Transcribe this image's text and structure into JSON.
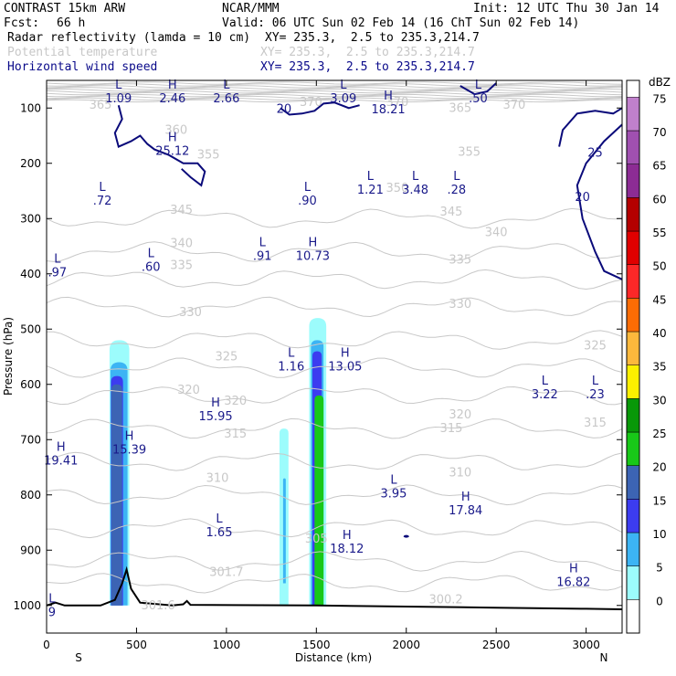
{
  "header": {
    "title": "CONTRAST 15km ARW",
    "model": "NCAR/MMM",
    "init": "Init: 12 UTC Thu 30 Jan 14",
    "fcst_label": "Fcst:",
    "fcst_value": "66 h",
    "valid": "Valid: 06 UTC Sun 02 Feb 14 (16 ChT Sun 02 Feb 14)",
    "fields": [
      {
        "name": "Radar reflectivity (lamda = 10 cm)",
        "xy": "XY= 235.3,  2.5 to 235.3,214.7"
      },
      {
        "name": "Potential temperature",
        "xy": "XY= 235.3,  2.5 to 235.3,214.7"
      },
      {
        "name": "Horizontal wind speed",
        "xy": "XY= 235.3,  2.5 to 235.3,214.7"
      }
    ]
  },
  "colors": {
    "theta_contour": "#c8c8c8",
    "wind_contour": "#0a0a7a",
    "terrain": "#000000",
    "text_blue": "#1a1a8a"
  },
  "chart_data": {
    "type": "cross-section",
    "xlabel": "Distance (km)",
    "ylabel": "Pressure (hPa)",
    "xlim": [
      0,
      3200
    ],
    "ylim": [
      1050,
      50
    ],
    "xticks": [
      "0",
      "500",
      "1000",
      "1500",
      "2000",
      "2500",
      "3000"
    ],
    "xtick_values": [
      0,
      500,
      1000,
      1500,
      2000,
      2500,
      3000
    ],
    "yticks": [
      "100",
      "200",
      "300",
      "400",
      "500",
      "600",
      "700",
      "800",
      "900",
      "1000"
    ],
    "ytick_values": [
      100,
      200,
      300,
      400,
      500,
      600,
      700,
      800,
      900,
      1000
    ],
    "x_end_left": "S",
    "x_end_right": "N",
    "colorbar": {
      "unit": "dBZ",
      "levels": [
        "0",
        "5",
        "10",
        "15",
        "20",
        "25",
        "30",
        "35",
        "40",
        "45",
        "50",
        "55",
        "60",
        "65",
        "70",
        "75"
      ],
      "colors": [
        "#ffffff",
        "#9cfcfc",
        "#3cb4f4",
        "#3c3cf0",
        "#3c64b4",
        "#18c818",
        "#089808",
        "#fcf000",
        "#fcb83c",
        "#fc6c04",
        "#fc2828",
        "#e00000",
        "#b40000",
        "#8c2c94",
        "#a050b0",
        "#c080cc"
      ]
    },
    "theta_levels": [
      {
        "label": "300.2",
        "x": 2220,
        "p": 990
      },
      {
        "label": "301.7",
        "x": 1000,
        "p": 940
      },
      {
        "label": "301.6",
        "x": 620,
        "p": 1000
      },
      {
        "label": "305",
        "x": 1500,
        "p": 880
      },
      {
        "label": "310",
        "x": 950,
        "p": 770
      },
      {
        "label": "310",
        "x": 2300,
        "p": 760
      },
      {
        "label": "315",
        "x": 1050,
        "p": 690
      },
      {
        "label": "315",
        "x": 2250,
        "p": 680
      },
      {
        "label": "315",
        "x": 3050,
        "p": 670
      },
      {
        "label": "320",
        "x": 790,
        "p": 610
      },
      {
        "label": "320",
        "x": 1050,
        "p": 630
      },
      {
        "label": "320",
        "x": 2300,
        "p": 655
      },
      {
        "label": "325",
        "x": 1000,
        "p": 550
      },
      {
        "label": "325",
        "x": 3050,
        "p": 530
      },
      {
        "label": "330",
        "x": 800,
        "p": 470
      },
      {
        "label": "330",
        "x": 2300,
        "p": 455
      },
      {
        "label": "335",
        "x": 750,
        "p": 385
      },
      {
        "label": "335",
        "x": 2300,
        "p": 375
      },
      {
        "label": "340",
        "x": 750,
        "p": 345
      },
      {
        "label": "340",
        "x": 2500,
        "p": 325
      },
      {
        "label": "345",
        "x": 750,
        "p": 285
      },
      {
        "label": "345",
        "x": 2250,
        "p": 288
      },
      {
        "label": "350",
        "x": 1950,
        "p": 245
      },
      {
        "label": "355",
        "x": 900,
        "p": 185
      },
      {
        "label": "355",
        "x": 2350,
        "p": 180
      },
      {
        "label": "360",
        "x": 720,
        "p": 140
      },
      {
        "label": "365",
        "x": 300,
        "p": 95
      },
      {
        "label": "365",
        "x": 2300,
        "p": 100
      },
      {
        "label": "370",
        "x": 1470,
        "p": 90
      },
      {
        "label": "370",
        "x": 1950,
        "p": 90
      },
      {
        "label": "370",
        "x": 2600,
        "p": 95
      }
    ],
    "wind_contour_labels": [
      {
        "label": "20",
        "x": 1320,
        "p": 100
      },
      {
        "label": "25",
        "x": 3050,
        "p": 180
      },
      {
        "label": "20",
        "x": 2980,
        "p": 260
      }
    ],
    "extrema": [
      {
        "type": "L",
        "value": "1.09",
        "x": 400,
        "p": 65
      },
      {
        "type": "H",
        "value": "2.46",
        "x": 700,
        "p": 65
      },
      {
        "type": "L",
        "value": "2.66",
        "x": 1000,
        "p": 65
      },
      {
        "type": "L",
        "value": "3.09",
        "x": 1650,
        "p": 65
      },
      {
        "type": "H",
        "value": "18.21",
        "x": 1900,
        "p": 85
      },
      {
        "type": "L",
        "value": ".50",
        "x": 2400,
        "p": 65
      },
      {
        "type": "H",
        "value": "25.12",
        "x": 700,
        "p": 160
      },
      {
        "type": "L",
        "value": ".72",
        "x": 310,
        "p": 250
      },
      {
        "type": "L",
        "value": ".90",
        "x": 1450,
        "p": 250
      },
      {
        "type": "L",
        "value": "1.21",
        "x": 1800,
        "p": 230
      },
      {
        "type": "L",
        "value": "3.48",
        "x": 2050,
        "p": 230
      },
      {
        "type": "L",
        "value": ".28",
        "x": 2280,
        "p": 230
      },
      {
        "type": "L",
        "value": ".97",
        "x": 60,
        "p": 380
      },
      {
        "type": "L",
        "value": ".60",
        "x": 580,
        "p": 370
      },
      {
        "type": "L",
        "value": ".91",
        "x": 1200,
        "p": 350
      },
      {
        "type": "H",
        "value": "10.73",
        "x": 1480,
        "p": 350
      },
      {
        "type": "L",
        "value": "1.16",
        "x": 1360,
        "p": 550
      },
      {
        "type": "H",
        "value": "13.05",
        "x": 1660,
        "p": 550
      },
      {
        "type": "L",
        "value": "3.22",
        "x": 2770,
        "p": 600
      },
      {
        "type": "L",
        "value": ".23",
        "x": 3050,
        "p": 600
      },
      {
        "type": "H",
        "value": "15.95",
        "x": 940,
        "p": 640
      },
      {
        "type": "H",
        "value": "19.41",
        "x": 80,
        "p": 720
      },
      {
        "type": "H",
        "value": "15.39",
        "x": 460,
        "p": 700
      },
      {
        "type": "L",
        "value": "3.95",
        "x": 1930,
        "p": 780
      },
      {
        "type": "H",
        "value": "17.84",
        "x": 2330,
        "p": 810
      },
      {
        "type": "L",
        "value": "1.65",
        "x": 960,
        "p": 850
      },
      {
        "type": "H",
        "value": "18.12",
        "x": 1670,
        "p": 880
      },
      {
        "type": "H",
        "value": "16.82",
        "x": 2930,
        "p": 940
      },
      {
        "type": "L",
        "value": "9",
        "x": 30,
        "p": 995
      }
    ],
    "reflectivity_cells": [
      {
        "x": [
          350,
          460
        ],
        "p": [
          520,
          1000
        ],
        "dbz": 5
      },
      {
        "x": [
          355,
          450
        ],
        "p": [
          560,
          1000
        ],
        "dbz": 10
      },
      {
        "x": [
          358,
          425
        ],
        "p": [
          585,
          1000
        ],
        "dbz": 15
      },
      {
        "x": [
          360,
          420
        ],
        "p": [
          600,
          1000
        ],
        "dbz": 20
      },
      {
        "x": [
          1295,
          1345
        ],
        "p": [
          680,
          1000
        ],
        "dbz": 5
      },
      {
        "x": [
          1315,
          1330
        ],
        "p": [
          770,
          960
        ],
        "dbz": 10
      },
      {
        "x": [
          1460,
          1555
        ],
        "p": [
          480,
          1000
        ],
        "dbz": 5
      },
      {
        "x": [
          1470,
          1540
        ],
        "p": [
          520,
          1000
        ],
        "dbz": 10
      },
      {
        "x": [
          1478,
          1530
        ],
        "p": [
          540,
          1000
        ],
        "dbz": 15
      },
      {
        "x": [
          1490,
          1540
        ],
        "p": [
          620,
          1000
        ],
        "dbz": 25
      }
    ]
  }
}
